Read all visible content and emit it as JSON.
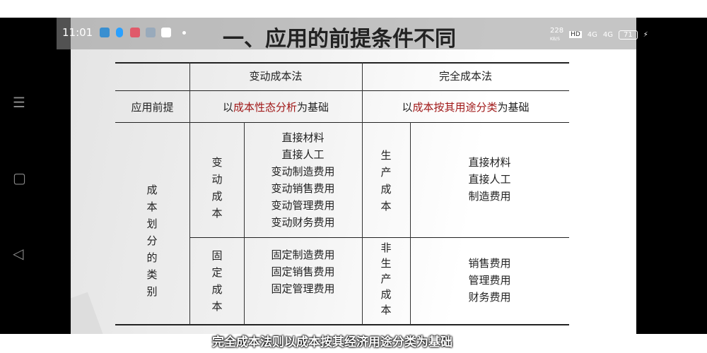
{
  "status": {
    "time": "11:01",
    "net_speed": "228",
    "net_unit": "KB/S",
    "hd": "HD",
    "signal1": "4G",
    "signal2": "4G",
    "battery": "71"
  },
  "nav": {
    "menu_icon": "☰",
    "home_icon": "▢",
    "back_icon": "◁"
  },
  "slide": {
    "title": "一、应用的前提条件不同",
    "header": {
      "col1": "变动成本法",
      "col2": "完全成本法"
    },
    "premise": {
      "label": "应用前提",
      "var_pre": "以",
      "var_red": "成本性态分析",
      "var_post": "为基础",
      "full_pre": "以",
      "full_red": "成本按其用途分类",
      "full_post": "为基础"
    },
    "category_label": "成本划分的类别",
    "var_cost": {
      "label": "变动成本",
      "items": [
        "直接材料",
        "直接人工",
        "变动制造费用",
        "变动销售费用",
        "变动管理费用",
        "变动财务费用"
      ]
    },
    "fixed_cost": {
      "label": "固定成本",
      "items": [
        "固定制造费用",
        "固定销售费用",
        "固定管理费用"
      ]
    },
    "prod_cost": {
      "label": "生产成本",
      "items": [
        "直接材料",
        "直接人工",
        "制造费用"
      ]
    },
    "nonprod_cost": {
      "label": "非生产成本",
      "items": [
        "销售费用",
        "管理费用",
        "财务费用"
      ]
    }
  },
  "subtitle": "完全成本法则以成本按其经济用途分类为基础",
  "colors": {
    "accent_red": "#c00000",
    "text_red": "#a01818"
  }
}
